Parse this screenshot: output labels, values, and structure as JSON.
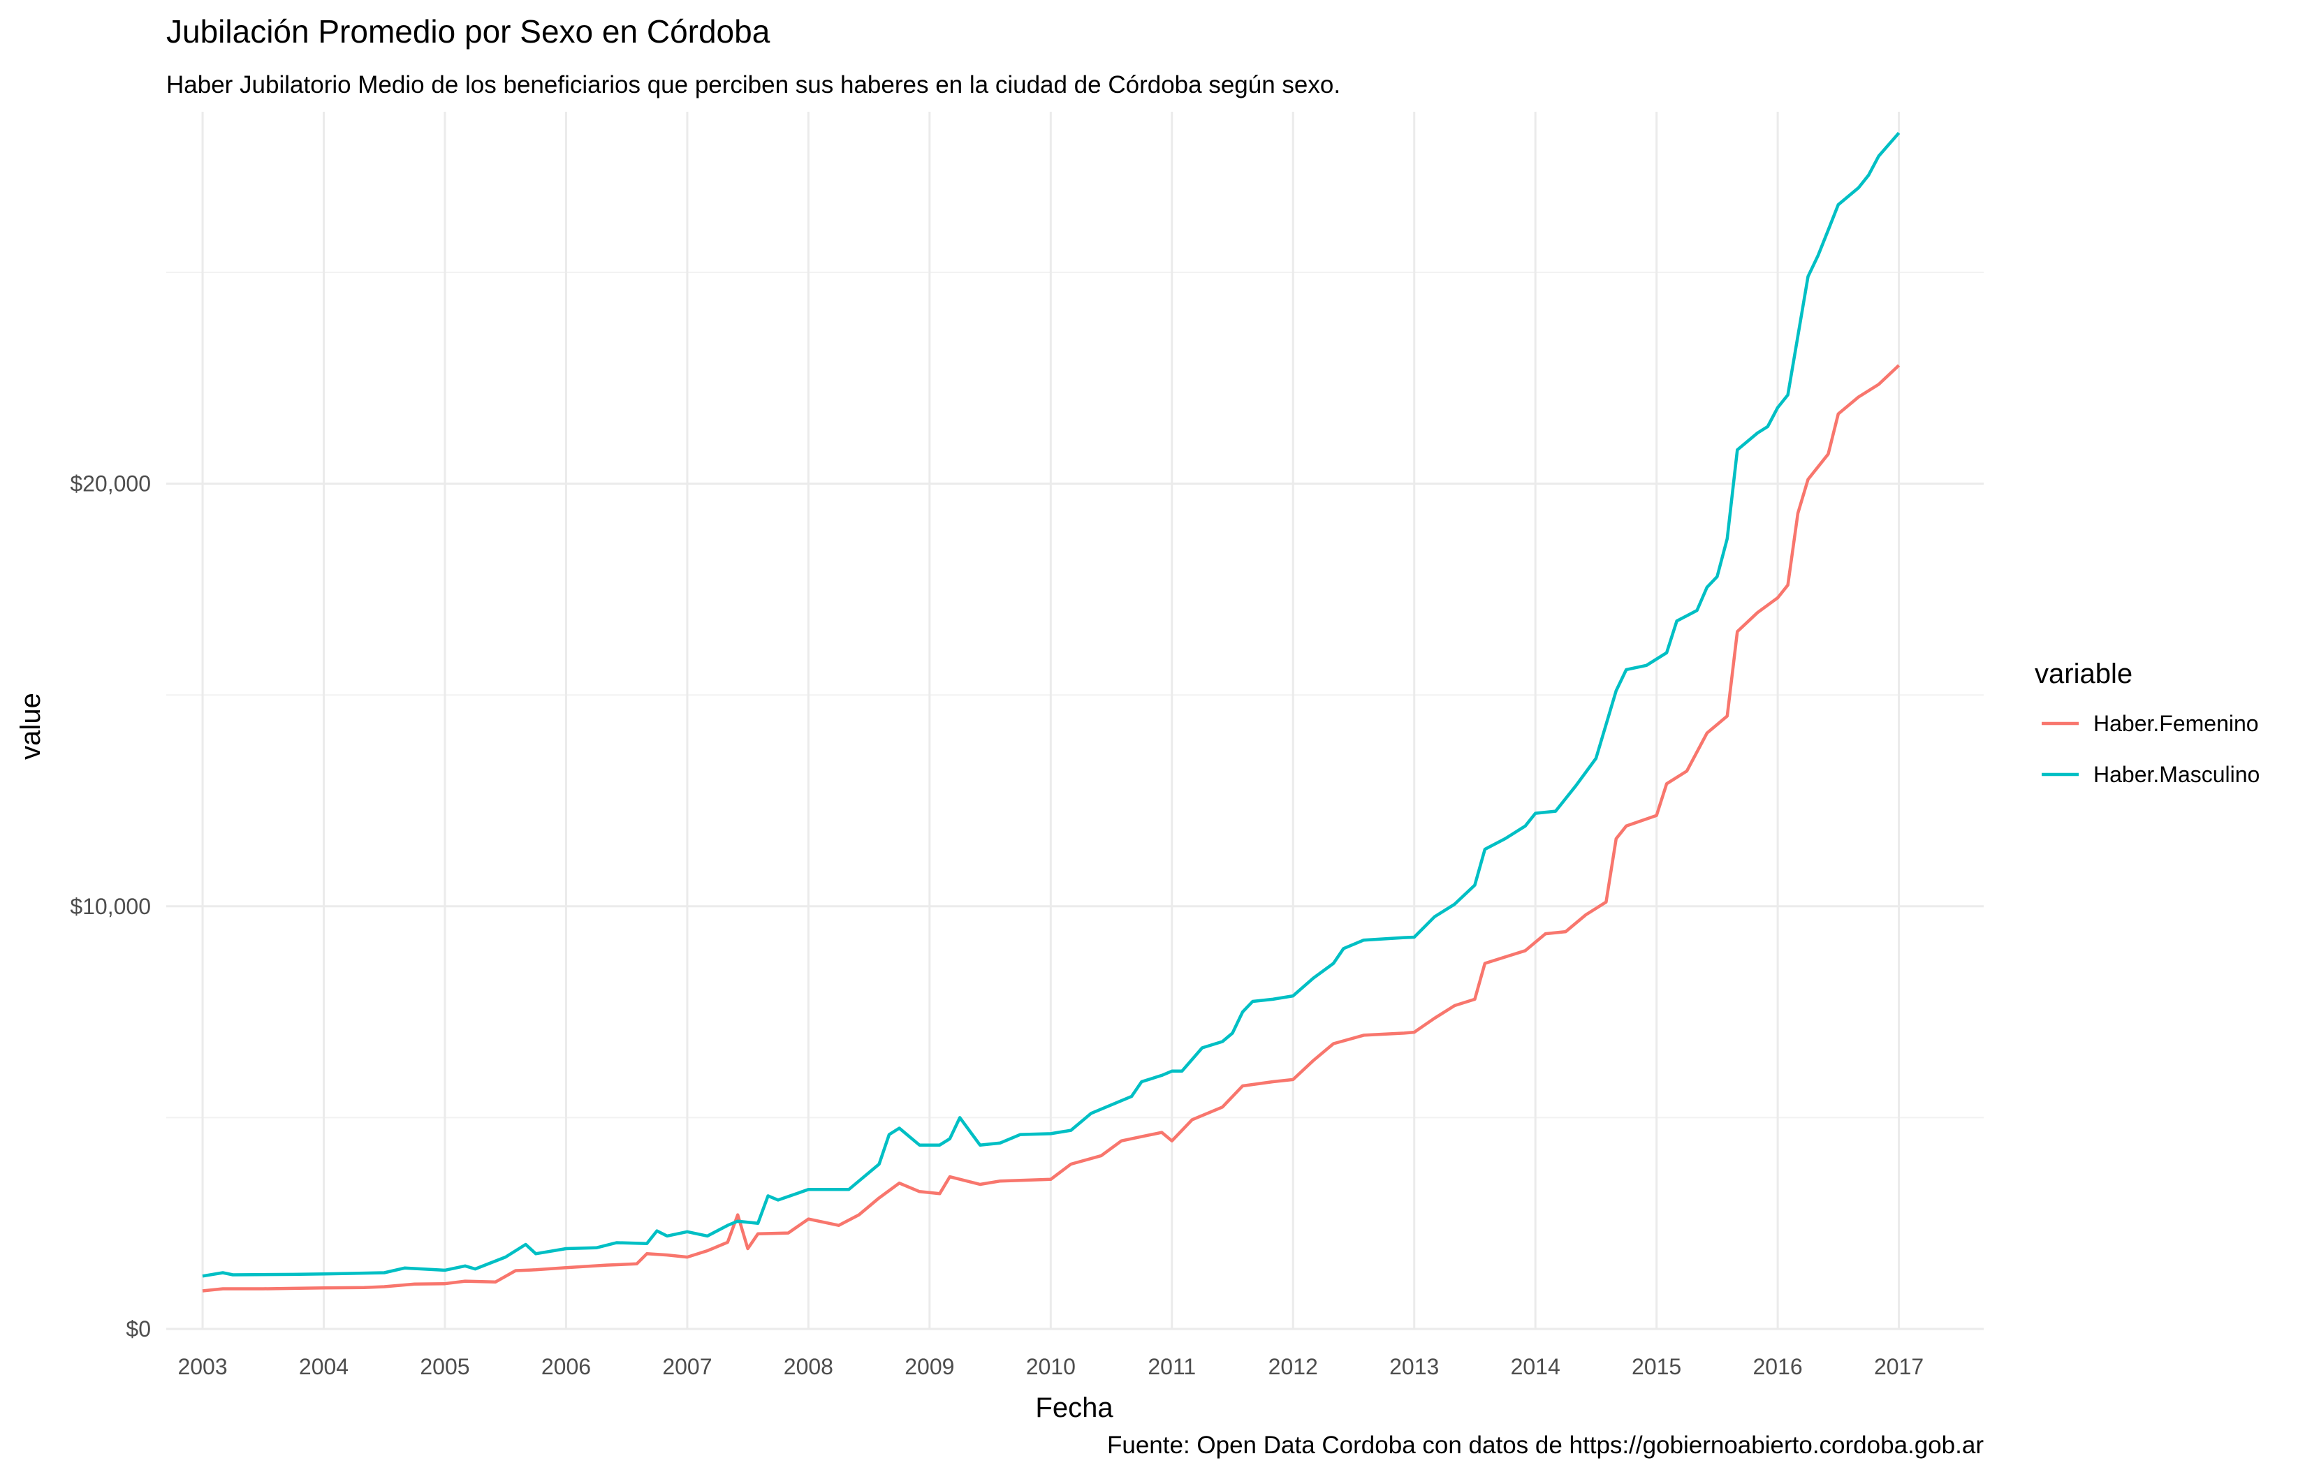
{
  "chart_data": {
    "type": "line",
    "title": "Jubilación Promedio por Sexo en Córdoba",
    "subtitle": "Haber Jubilatorio Medio de los beneficiarios que perciben sus haberes en la ciudad de Córdoba según sexo.",
    "caption": "Fuente: Open Data Cordoba con datos de https://gobiernoabierto.cordoba.gob.ar",
    "xlabel": "Fecha",
    "ylabel": "value",
    "xlim": [
      2002.7,
      2017.7
    ],
    "ylim": [
      0,
      28800
    ],
    "x_ticks": [
      "2003",
      "2004",
      "2005",
      "2006",
      "2007",
      "2008",
      "2009",
      "2010",
      "2011",
      "2012",
      "2013",
      "2014",
      "2015",
      "2016",
      "2017"
    ],
    "y_ticks": [
      {
        "value": 0,
        "label": "$0"
      },
      {
        "value": 10000,
        "label": "$10,000"
      },
      {
        "value": 20000,
        "label": "$20,000"
      }
    ],
    "y_minor_ticks": [
      5000,
      15000,
      25000
    ],
    "grid": true,
    "legend": {
      "title": "variable",
      "position": "right"
    },
    "series": [
      {
        "name": "Haber.Femenino",
        "color": "#f8766d",
        "points": [
          [
            "2003-01",
            900
          ],
          [
            "2003-03",
            950
          ],
          [
            "2003-07",
            950
          ],
          [
            "2003-10",
            960
          ],
          [
            "2004-01",
            970
          ],
          [
            "2004-05",
            980
          ],
          [
            "2004-07",
            1000
          ],
          [
            "2004-10",
            1060
          ],
          [
            "2005-01",
            1070
          ],
          [
            "2005-03",
            1130
          ],
          [
            "2005-06",
            1110
          ],
          [
            "2005-08",
            1380
          ],
          [
            "2005-10",
            1400
          ],
          [
            "2006-01",
            1450
          ],
          [
            "2006-05",
            1510
          ],
          [
            "2006-08",
            1540
          ],
          [
            "2006-09",
            1780
          ],
          [
            "2006-11",
            1750
          ],
          [
            "2007-01",
            1700
          ],
          [
            "2007-03",
            1850
          ],
          [
            "2007-05",
            2050
          ],
          [
            "2007-06",
            2700
          ],
          [
            "2007-07",
            1900
          ],
          [
            "2007-08",
            2250
          ],
          [
            "2007-11",
            2270
          ],
          [
            "2008-01",
            2600
          ],
          [
            "2008-04",
            2450
          ],
          [
            "2008-06",
            2700
          ],
          [
            "2008-08",
            3100
          ],
          [
            "2008-10",
            3450
          ],
          [
            "2008-12",
            3250
          ],
          [
            "2009-02",
            3200
          ],
          [
            "2009-03",
            3600
          ],
          [
            "2009-06",
            3420
          ],
          [
            "2009-08",
            3500
          ],
          [
            "2010-01",
            3540
          ],
          [
            "2010-03",
            3900
          ],
          [
            "2010-06",
            4100
          ],
          [
            "2010-08",
            4450
          ],
          [
            "2010-10",
            4550
          ],
          [
            "2010-12",
            4650
          ],
          [
            "2011-01",
            4450
          ],
          [
            "2011-03",
            4950
          ],
          [
            "2011-06",
            5250
          ],
          [
            "2011-08",
            5750
          ],
          [
            "2011-11",
            5850
          ],
          [
            "2012-01",
            5900
          ],
          [
            "2012-03",
            6350
          ],
          [
            "2012-05",
            6750
          ],
          [
            "2012-08",
            6950
          ],
          [
            "2012-12",
            7000
          ],
          [
            "2013-01",
            7020
          ],
          [
            "2013-03",
            7350
          ],
          [
            "2013-05",
            7650
          ],
          [
            "2013-07",
            7800
          ],
          [
            "2013-08",
            8650
          ],
          [
            "2013-12",
            8950
          ],
          [
            "2014-02",
            9350
          ],
          [
            "2014-04",
            9400
          ],
          [
            "2014-06",
            9800
          ],
          [
            "2014-08",
            10100
          ],
          [
            "2014-09",
            11600
          ],
          [
            "2014-10",
            11900
          ],
          [
            "2015-01",
            12150
          ],
          [
            "2015-02",
            12900
          ],
          [
            "2015-04",
            13200
          ],
          [
            "2015-06",
            14100
          ],
          [
            "2015-08",
            14500
          ],
          [
            "2015-09",
            16500
          ],
          [
            "2015-11",
            16950
          ],
          [
            "2016-01",
            17300
          ],
          [
            "2016-02",
            17600
          ],
          [
            "2016-03",
            19300
          ],
          [
            "2016-04",
            20100
          ],
          [
            "2016-06",
            20700
          ],
          [
            "2016-07",
            21650
          ],
          [
            "2016-09",
            22050
          ],
          [
            "2016-11",
            22350
          ],
          [
            "2017-01",
            22800
          ]
        ]
      },
      {
        "name": "Haber.Masculino",
        "color": "#00bfc4",
        "points": [
          [
            "2003-01",
            1250
          ],
          [
            "2003-03",
            1330
          ],
          [
            "2003-04",
            1280
          ],
          [
            "2003-10",
            1290
          ],
          [
            "2004-01",
            1300
          ],
          [
            "2004-07",
            1330
          ],
          [
            "2004-09",
            1440
          ],
          [
            "2005-01",
            1390
          ],
          [
            "2005-03",
            1490
          ],
          [
            "2005-04",
            1420
          ],
          [
            "2005-07",
            1700
          ],
          [
            "2005-09",
            2000
          ],
          [
            "2005-10",
            1780
          ],
          [
            "2006-01",
            1900
          ],
          [
            "2006-04",
            1920
          ],
          [
            "2006-06",
            2040
          ],
          [
            "2006-09",
            2020
          ],
          [
            "2006-10",
            2320
          ],
          [
            "2006-11",
            2200
          ],
          [
            "2007-01",
            2300
          ],
          [
            "2007-03",
            2200
          ],
          [
            "2007-05",
            2450
          ],
          [
            "2007-06",
            2550
          ],
          [
            "2007-08",
            2500
          ],
          [
            "2007-09",
            3150
          ],
          [
            "2007-10",
            3050
          ],
          [
            "2008-01",
            3300
          ],
          [
            "2008-05",
            3300
          ],
          [
            "2008-06",
            3500
          ],
          [
            "2008-08",
            3900
          ],
          [
            "2008-09",
            4600
          ],
          [
            "2008-10",
            4750
          ],
          [
            "2008-12",
            4350
          ],
          [
            "2009-02",
            4350
          ],
          [
            "2009-03",
            4500
          ],
          [
            "2009-04",
            5000
          ],
          [
            "2009-06",
            4350
          ],
          [
            "2009-08",
            4400
          ],
          [
            "2009-10",
            4600
          ],
          [
            "2010-01",
            4620
          ],
          [
            "2010-03",
            4700
          ],
          [
            "2010-05",
            5100
          ],
          [
            "2010-07",
            5300
          ],
          [
            "2010-09",
            5500
          ],
          [
            "2010-10",
            5850
          ],
          [
            "2010-12",
            6000
          ],
          [
            "2011-01",
            6100
          ],
          [
            "2011-02",
            6100
          ],
          [
            "2011-04",
            6650
          ],
          [
            "2011-06",
            6800
          ],
          [
            "2011-07",
            7000
          ],
          [
            "2011-08",
            7500
          ],
          [
            "2011-09",
            7750
          ],
          [
            "2011-11",
            7800
          ],
          [
            "2012-01",
            7880
          ],
          [
            "2012-03",
            8300
          ],
          [
            "2012-05",
            8650
          ],
          [
            "2012-06",
            9000
          ],
          [
            "2012-08",
            9200
          ],
          [
            "2012-12",
            9260
          ],
          [
            "2013-01",
            9270
          ],
          [
            "2013-03",
            9750
          ],
          [
            "2013-05",
            10050
          ],
          [
            "2013-07",
            10500
          ],
          [
            "2013-08",
            11350
          ],
          [
            "2013-10",
            11600
          ],
          [
            "2013-12",
            11900
          ],
          [
            "2014-01",
            12200
          ],
          [
            "2014-03",
            12250
          ],
          [
            "2014-05",
            12850
          ],
          [
            "2014-07",
            13500
          ],
          [
            "2014-09",
            15100
          ],
          [
            "2014-10",
            15600
          ],
          [
            "2014-12",
            15700
          ],
          [
            "2015-02",
            16000
          ],
          [
            "2015-03",
            16750
          ],
          [
            "2015-05",
            17000
          ],
          [
            "2015-06",
            17550
          ],
          [
            "2015-07",
            17800
          ],
          [
            "2015-08",
            18700
          ],
          [
            "2015-09",
            20800
          ],
          [
            "2015-11",
            21200
          ],
          [
            "2015-12",
            21350
          ],
          [
            "2016-01",
            21800
          ],
          [
            "2016-02",
            22100
          ],
          [
            "2016-04",
            24900
          ],
          [
            "2016-05",
            25400
          ],
          [
            "2016-06",
            26000
          ],
          [
            "2016-07",
            26600
          ],
          [
            "2016-09",
            27000
          ],
          [
            "2016-10",
            27300
          ],
          [
            "2016-11",
            27750
          ],
          [
            "2017-01",
            28300
          ]
        ]
      }
    ]
  }
}
